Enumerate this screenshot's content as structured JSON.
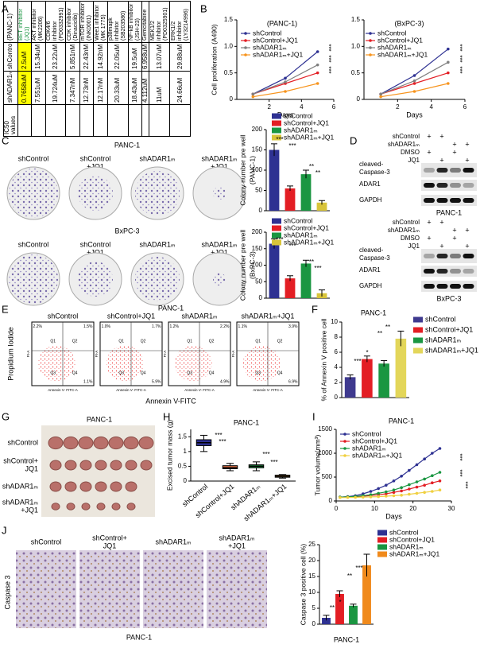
{
  "panel_labels": [
    "A",
    "B",
    "C",
    "D",
    "E",
    "F",
    "G",
    "H",
    "I",
    "J"
  ],
  "ic50_table": {
    "cell_line": "(PANC-1)",
    "caption": "IC50 values",
    "columns": [
      "shControl",
      "shADAR1ₘ"
    ],
    "rows": [
      {
        "drug": "BET inhibitor (JQ1)",
        "values": [
          "2.5uM",
          "0.7658uM"
        ]
      },
      {
        "drug": "AKT inhibitor (MK2206)",
        "values": [
          "15.34uM",
          "7.551uM"
        ]
      },
      {
        "drug": "CDK4/6 inhibitor (PD0332991)",
        "values": [
          "23.22uM",
          "19.724uM"
        ]
      },
      {
        "drug": "CDK inhibitor (Dinaciclib)",
        "values": [
          "5.851nM",
          "7.347nM"
        ]
      },
      {
        "drug": "mTOR inhibitor (INK0001)",
        "values": [
          "22.43nM",
          "12.73nM"
        ]
      },
      {
        "drug": "Wee1 inhibitor (MK 1775)",
        "values": [
          "14.92nM",
          "12.17nM"
        ]
      },
      {
        "drug": "p38mapk inhibitor (SB203580)",
        "values": [
          "22.05uM",
          "20.33uM"
        ]
      },
      {
        "drug": "NF-kB inhibitor (JSH-23)",
        "values": [
          "19.5uM",
          "18.43uM"
        ]
      },
      {
        "drug": "Gemcitabine",
        "values": [
          "6.958uM",
          "4.112uM"
        ]
      },
      {
        "drug": "MEK1/2 inhibitor (PD0325901)",
        "values": [
          "13.07uM",
          "11uM"
        ]
      },
      {
        "drug": "ERK1/2 inhibitor (LY3214996)",
        "values": [
          "29.88uM",
          "24.66uM"
        ]
      }
    ]
  },
  "colony": {
    "cell_lines": [
      "PANC-1",
      "BxPC-3"
    ],
    "groups": [
      [
        "shControl"
      ],
      [
        "shControl",
        "+JQ1"
      ],
      [
        "shADAR1ₘ"
      ],
      [
        "shADAR1ₘ",
        "+JQ1"
      ]
    ]
  },
  "blots": {
    "rows": [
      "shControl",
      "shADAR1ₘ",
      "DMSO",
      "JQ1"
    ],
    "signs": [
      [
        "+",
        "+",
        null,
        null
      ],
      [
        null,
        null,
        "+",
        "+"
      ],
      [
        "+",
        null,
        "+",
        null
      ],
      [
        null,
        "+",
        null,
        "+"
      ]
    ],
    "bands": [
      [
        "cleaved-",
        "Caspase-3"
      ],
      [
        "ADAR1"
      ],
      [
        "GAPDH"
      ]
    ],
    "cell_lines": [
      "PANC-1",
      "BxPC-3"
    ]
  },
  "flow": {
    "title": "PANC-1",
    "groups": [
      "shControl",
      "shControl+JQ1",
      "shADAR1ₘ",
      "shADAR1ₘ+JQ1"
    ],
    "y_label": "Propidium Iodide",
    "x_label": "Annexin V-FITC",
    "axis_y": "PI-A",
    "axis_x": "Annexin V- FITC-A",
    "quadrants": [
      "Q1",
      "Q2",
      "Q3",
      "Q4"
    ],
    "percents": [
      [
        "2.2%",
        "1.5%",
        "1.1%"
      ],
      [
        "1.0%",
        "1.7%",
        "5.9%"
      ],
      [
        "1.2%",
        "2.2%",
        "4.9%"
      ],
      [
        "1.1%",
        "3.9%",
        "6.9%"
      ]
    ]
  },
  "tumor": {
    "title": "PANC-1",
    "groups": [
      [
        "shControl"
      ],
      [
        "shControl+",
        "JQ1"
      ],
      [
        "shADAR1ₘ"
      ],
      [
        "shADAR1ₘ",
        "+JQ1"
      ]
    ]
  },
  "ihc": {
    "stain": "Caspase 3",
    "cell_line": "PANC-1",
    "groups": [
      [
        "shControl"
      ],
      [
        "shControl+",
        "JQ1"
      ],
      [
        "shADAR1ₘ"
      ],
      [
        "shADAR1ₘ",
        "+JQ1"
      ]
    ]
  },
  "chart_data": [
    {
      "type": "line",
      "title": "(PANC-1)",
      "y_label": "Cell proliferation (A490)",
      "x_label": "Days",
      "x": [
        1,
        3,
        5
      ],
      "xlim": [
        0,
        6
      ],
      "xticks": [
        2,
        4,
        6
      ],
      "ylim": [
        0,
        1.5
      ],
      "yticks": [
        0,
        0.5,
        {
          "value": 1,
          "label": "1.0"
        },
        1.5
      ],
      "series": [
        {
          "name": "shControl",
          "color": "#2e3192",
          "values": [
            0.1,
            0.4,
            0.9
          ]
        },
        {
          "name": "shControl+JQ1",
          "color": "#e31e24",
          "values": [
            0.1,
            0.3,
            0.5
          ]
        },
        {
          "name": "shADAR1ₘ",
          "color": "#808080",
          "values": [
            0.1,
            0.33,
            0.65
          ]
        },
        {
          "name": "shADAR1ₘ+JQ1",
          "color": "#f7941d",
          "values": [
            0.05,
            0.15,
            0.3
          ]
        }
      ],
      "annotations": [
        "***",
        "***",
        "***"
      ]
    },
    {
      "type": "line",
      "title": "(BxPC-3)",
      "x_label": "Days",
      "x": [
        1,
        3,
        5
      ],
      "xlim": [
        0,
        6
      ],
      "xticks": [
        2,
        4,
        6
      ],
      "ylim": [
        0,
        1.5
      ],
      "yticks": [
        0,
        0.5,
        {
          "value": 1,
          "label": "1.0"
        },
        1.5
      ],
      "series": [
        {
          "name": "shControl",
          "color": "#2e3192",
          "values": [
            0.1,
            0.45,
            0.95
          ]
        },
        {
          "name": "shControl+JQ1",
          "color": "#e31e24",
          "values": [
            0.1,
            0.3,
            0.5
          ]
        },
        {
          "name": "shADAR1ₘ",
          "color": "#808080",
          "values": [
            0.1,
            0.35,
            0.7
          ]
        },
        {
          "name": "shADAR1ₘ+JQ1",
          "color": "#f7941d",
          "values": [
            0.05,
            0.15,
            0.3
          ]
        }
      ],
      "annotations": [
        "***",
        "***",
        "***"
      ]
    },
    {
      "type": "bar",
      "subtitle": "(PANC-1)",
      "y_label": "Colony number pre well",
      "ylim": [
        0,
        200
      ],
      "yticks": [
        0,
        50,
        100,
        150,
        200
      ],
      "series": [
        {
          "name": "shControl",
          "color": "#2e3192",
          "values": [
            150
          ],
          "errors": [
            15
          ]
        },
        {
          "name": "shControl+JQ1",
          "color": "#e31e24",
          "values": [
            55
          ],
          "errors": [
            6
          ]
        },
        {
          "name": "shADAR1ₘ",
          "color": "#1a9641",
          "values": [
            90
          ],
          "errors": [
            10
          ]
        },
        {
          "name": "shADAR1ₘ+JQ1",
          "color": "#d8c43a",
          "values": [
            20
          ],
          "errors": [
            5
          ]
        }
      ],
      "annotations": [
        "***",
        "***",
        "**",
        "**"
      ]
    },
    {
      "type": "bar",
      "subtitle": "(BxPC-3)",
      "y_label": "Colony number pre well",
      "ylim": [
        0,
        200
      ],
      "yticks": [
        0,
        50,
        100,
        150,
        200
      ],
      "series": [
        {
          "name": "shControl",
          "color": "#2e3192",
          "values": [
            165
          ],
          "errors": [
            15
          ]
        },
        {
          "name": "shControl+JQ1",
          "color": "#e31e24",
          "values": [
            60
          ],
          "errors": [
            8
          ]
        },
        {
          "name": "shADAR1ₘ",
          "color": "#1a9641",
          "values": [
            105
          ],
          "errors": [
            10
          ]
        },
        {
          "name": "shADAR1ₘ+JQ1",
          "color": "#d8c43a",
          "values": [
            15
          ],
          "errors": [
            10
          ]
        }
      ],
      "annotations": [
        "***",
        "***",
        "**",
        "***"
      ]
    },
    {
      "type": "bar",
      "title": "PANC-1",
      "y_label": "% of Annexin V positive cell",
      "ylim": [
        0,
        10
      ],
      "yticks": [
        0,
        2,
        4,
        6,
        8,
        10
      ],
      "series": [
        {
          "name": "shControl",
          "color": "#3f3a8f",
          "values": [
            2.7
          ],
          "errors": [
            0.3
          ]
        },
        {
          "name": "shControl+JQ1",
          "color": "#e31e24",
          "values": [
            5.1
          ],
          "errors": [
            0.4
          ]
        },
        {
          "name": "shADAR1ₘ",
          "color": "#1a9641",
          "values": [
            4.5
          ],
          "errors": [
            0.4
          ]
        },
        {
          "name": "shADAR1ₘ+JQ1",
          "color": "#e3d65a",
          "values": [
            7.8
          ],
          "errors": [
            1.0
          ]
        }
      ],
      "annotations": [
        "***",
        "*",
        "**",
        "**"
      ]
    },
    {
      "type": "box",
      "title": "PANC-1",
      "y_label": "Excised tumor mass (g)",
      "ylim": [
        0,
        1.75
      ],
      "yticks": [
        0,
        0.5,
        1,
        1.5
      ],
      "categories": [
        "shControl",
        "shControl+JQ1",
        "shADAR1ₘ",
        "shADAR1ₘ+JQ1"
      ],
      "colors": [
        "#2e3192",
        "#e8734a",
        "#1a9641",
        "#e89a3c"
      ],
      "boxes": [
        [
          1.0,
          1.2,
          1.3,
          1.4,
          1.55
        ],
        [
          0.35,
          0.42,
          0.45,
          0.52,
          0.6
        ],
        [
          0.35,
          0.45,
          0.5,
          0.55,
          0.65
        ],
        [
          0.1,
          0.13,
          0.16,
          0.2,
          0.22
        ]
      ],
      "annotations": [
        "***",
        "***",
        "***",
        "***"
      ]
    },
    {
      "type": "line",
      "title": "PANC-1",
      "y_label": "Tumor volume(mm³)",
      "x_label": "Days",
      "x": [
        1,
        3,
        5,
        7,
        9,
        11,
        13,
        15,
        17,
        19,
        21,
        23,
        25,
        27
      ],
      "xlim": [
        0,
        30
      ],
      "xticks": [
        0,
        10,
        20,
        30
      ],
      "ylim": [
        0,
        1500
      ],
      "yticks": [
        0,
        500,
        1000,
        1500
      ],
      "series": [
        {
          "name": "shControl",
          "color": "#2e3192",
          "values": [
            80,
            90,
            110,
            150,
            200,
            260,
            330,
            420,
            520,
            640,
            760,
            880,
            1000,
            1100
          ]
        },
        {
          "name": "shControl+JQ1",
          "color": "#e31e24",
          "values": [
            80,
            85,
            90,
            100,
            115,
            130,
            150,
            180,
            210,
            250,
            290,
            330,
            380,
            420
          ]
        },
        {
          "name": "shADAR1ₘ",
          "color": "#1a9641",
          "values": [
            80,
            85,
            95,
            110,
            130,
            160,
            190,
            230,
            280,
            340,
            400,
            460,
            530,
            600
          ]
        },
        {
          "name": "shADAR1ₘ+JQ1",
          "color": "#f0d040",
          "values": [
            70,
            72,
            75,
            80,
            85,
            90,
            100,
            110,
            120,
            140,
            160,
            180,
            200,
            230
          ]
        }
      ],
      "annotations": [
        "***",
        "***",
        "***"
      ]
    },
    {
      "type": "bar",
      "y_label": "Caspase 3 positive cell (%)",
      "x_label": "PANC-1",
      "ylim": [
        0,
        25
      ],
      "yticks": [
        0,
        5,
        10,
        15,
        20,
        25
      ],
      "series": [
        {
          "name": "shControl",
          "color": "#2e3192",
          "values": [
            2
          ],
          "errors": [
            0.8
          ]
        },
        {
          "name": "shControl+JQ1",
          "color": "#e31e24",
          "values": [
            9.5
          ],
          "errors": [
            1
          ]
        },
        {
          "name": "shADAR1ₘ",
          "color": "#1a9641",
          "values": [
            5.8
          ],
          "errors": [
            0.5
          ]
        },
        {
          "name": "shADAR1ₘ+JQ1",
          "color": "#f08a1c",
          "values": [
            18.5
          ],
          "errors": [
            3.5
          ]
        }
      ],
      "annotations": [
        "**",
        "*",
        "**",
        "***"
      ]
    }
  ]
}
